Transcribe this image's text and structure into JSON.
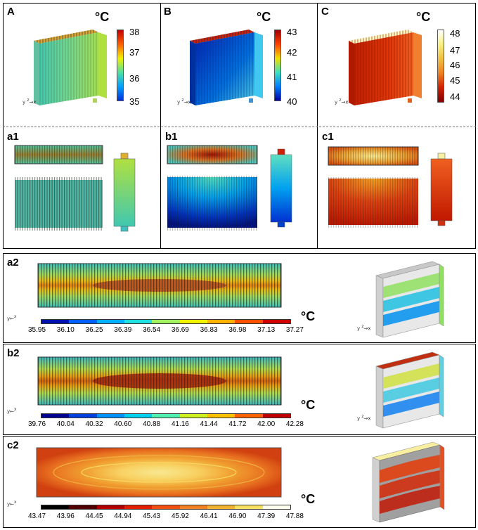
{
  "panels": {
    "A": {
      "label": "A",
      "unit": "°C",
      "ticks": [
        "38",
        "37",
        "36",
        "35"
      ]
    },
    "B": {
      "label": "B",
      "unit": "°C",
      "ticks": [
        "43",
        "42",
        "41",
        "40"
      ]
    },
    "C": {
      "label": "C",
      "unit": "°C",
      "ticks": [
        "48",
        "47",
        "46",
        "45",
        "44"
      ]
    },
    "a1": {
      "label": "a1"
    },
    "b1": {
      "label": "b1"
    },
    "c1": {
      "label": "c1"
    },
    "a2": {
      "label": "a2",
      "unit": "°C",
      "ticks": [
        "35.95",
        "36.10",
        "36.25",
        "36.39",
        "36.54",
        "36.69",
        "36.83",
        "36.98",
        "37.13",
        "37.27"
      ]
    },
    "b2": {
      "label": "b2",
      "unit": "°C",
      "ticks": [
        "39.76",
        "40.04",
        "40.32",
        "40.60",
        "40.88",
        "41.16",
        "41.44",
        "41.72",
        "42.00",
        "42.28"
      ]
    },
    "c2": {
      "label": "c2",
      "unit": "°C",
      "ticks": [
        "43.47",
        "43.96",
        "44.45",
        "44.94",
        "45.43",
        "45.92",
        "46.41",
        "46.90",
        "47.39",
        "47.88"
      ]
    }
  },
  "axes": {
    "z": "z",
    "x": "x",
    "y": "y"
  },
  "colors": {
    "jet": [
      "#0000a0",
      "#0040ff",
      "#00a0ff",
      "#30e0d0",
      "#90f070",
      "#f0f000",
      "#ffa000",
      "#ff3000",
      "#a00000"
    ],
    "heat": [
      "#000000",
      "#600000",
      "#c01010",
      "#e04010",
      "#f07020",
      "#f0a030",
      "#f0d040",
      "#f8f080",
      "#ffffff"
    ],
    "a2bar": [
      "#0010b0",
      "#0060ff",
      "#00b0ff",
      "#20e0e0",
      "#a0f060",
      "#f0f000",
      "#ffb000",
      "#ff5000",
      "#d00000"
    ],
    "b2bar": [
      "#000090",
      "#0040e0",
      "#0090ff",
      "#00d0f0",
      "#50f0b0",
      "#d0f020",
      "#ffc000",
      "#ff6000",
      "#c00000"
    ],
    "c2bar": [
      "#000000",
      "#500000",
      "#b00000",
      "#e02000",
      "#f05010",
      "#f08020",
      "#f0b030",
      "#f8e060",
      "#fffff0"
    ]
  }
}
